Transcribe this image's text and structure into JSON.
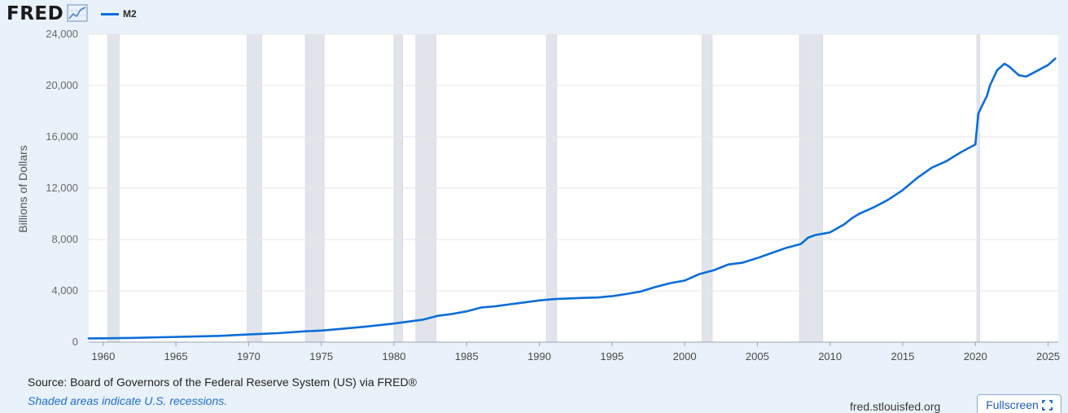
{
  "header": {
    "logo_text": "FRED",
    "logo_icon": "line-chart-icon",
    "legend_label": "M2",
    "series_color": "#0b6dd8"
  },
  "footer": {
    "source": "Source: Board of Governors of the Federal Reserve System (US) via FRED®",
    "note": "Shaded areas indicate U.S. recessions.",
    "site": "fred.stlouisfed.org",
    "fullscreen_label": "Fullscreen",
    "fullscreen_icon": "fullscreen-icon"
  },
  "chart_data": {
    "type": "line",
    "title": "",
    "xlabel": "",
    "ylabel": "Billions of Dollars",
    "xlim": [
      1959.0,
      2025.7
    ],
    "ylim": [
      0,
      24000
    ],
    "y_ticks": [
      0,
      4000,
      8000,
      12000,
      16000,
      20000,
      24000
    ],
    "y_tick_labels": [
      "0",
      "4,000",
      "8,000",
      "12,000",
      "16,000",
      "20,000",
      "24,000"
    ],
    "x_ticks": [
      1960,
      1965,
      1970,
      1975,
      1980,
      1985,
      1990,
      1995,
      2000,
      2005,
      2010,
      2015,
      2020,
      2025
    ],
    "x_tick_labels": [
      "1960",
      "1965",
      "1970",
      "1975",
      "1980",
      "1985",
      "1990",
      "1995",
      "2000",
      "2005",
      "2010",
      "2015",
      "2020",
      "2025"
    ],
    "grid": true,
    "recessions": [
      [
        1960.3,
        1961.1
      ],
      [
        1969.9,
        1970.9
      ],
      [
        1973.9,
        1975.2
      ],
      [
        1980.0,
        1980.6
      ],
      [
        1981.5,
        1982.9
      ],
      [
        1990.5,
        1991.2
      ],
      [
        2001.2,
        2001.9
      ],
      [
        2007.9,
        2009.5
      ],
      [
        2020.1,
        2020.3
      ]
    ],
    "series": [
      {
        "name": "M2",
        "x": [
          1959.0,
          1960.0,
          1962.0,
          1964.0,
          1966.0,
          1968.0,
          1970.0,
          1972.0,
          1974.0,
          1975.0,
          1976.0,
          1978.0,
          1980.0,
          1982.0,
          1983.0,
          1984.0,
          1985.0,
          1986.0,
          1987.0,
          1988.0,
          1989.0,
          1990.0,
          1991.0,
          1992.0,
          1993.0,
          1994.0,
          1995.0,
          1996.0,
          1997.0,
          1998.0,
          1999.0,
          2000.0,
          2001.0,
          2002.0,
          2003.0,
          2004.0,
          2005.0,
          2006.0,
          2007.0,
          2008.0,
          2008.5,
          2009.0,
          2010.0,
          2011.0,
          2011.5,
          2012.0,
          2013.0,
          2014.0,
          2015.0,
          2016.0,
          2017.0,
          2018.0,
          2019.0,
          2020.0,
          2020.2,
          2020.4,
          2020.8,
          2021.0,
          2021.5,
          2022.0,
          2022.3,
          2022.8,
          2023.0,
          2023.5,
          2024.0,
          2024.5,
          2025.0,
          2025.5
        ],
        "y": [
          290,
          300,
          330,
          380,
          430,
          490,
          600,
          700,
          850,
          900,
          1000,
          1200,
          1450,
          1750,
          2050,
          2200,
          2400,
          2700,
          2800,
          2950,
          3100,
          3250,
          3350,
          3400,
          3450,
          3480,
          3580,
          3750,
          3950,
          4300,
          4600,
          4800,
          5300,
          5600,
          6050,
          6200,
          6550,
          6950,
          7350,
          7650,
          8150,
          8350,
          8550,
          9200,
          9650,
          10000,
          10500,
          11100,
          11850,
          12800,
          13600,
          14100,
          14800,
          15400,
          17800,
          18300,
          19200,
          20000,
          21200,
          21700,
          21500,
          21000,
          20800,
          20700,
          21000,
          21300,
          21600,
          22100
        ]
      }
    ]
  }
}
